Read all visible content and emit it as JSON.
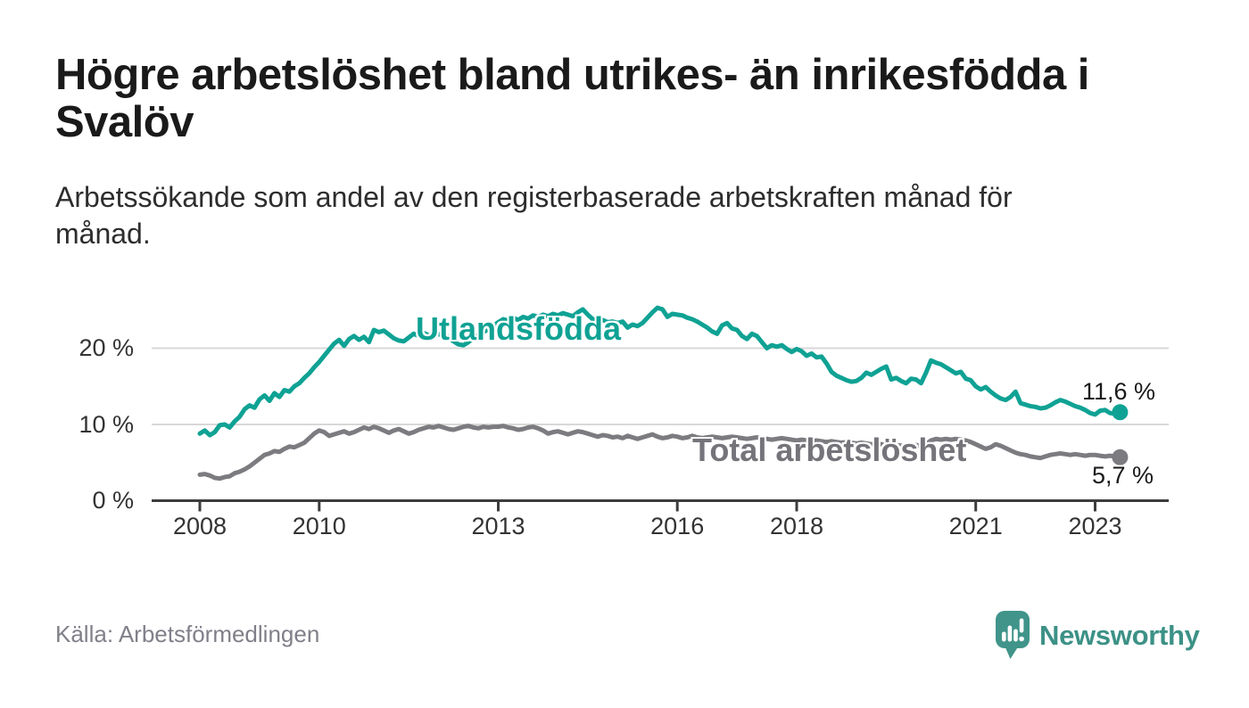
{
  "header": {
    "title_lines": [
      "Högre arbetslöshet bland utrikes- än inrikesfödda i",
      "Svalöv"
    ],
    "subtitle_lines": [
      "Arbetssökande som andel av den registerbaserade arbetskraften månad för",
      "månad."
    ]
  },
  "footer": {
    "source": "Källa: Arbetsförmedlingen",
    "logo_text": "Newsworthy"
  },
  "colors": {
    "accent_teal": "#0fa294",
    "series_gray": "#7b7b80",
    "grid": "#d8d8d8",
    "axis": "#3d3d3d",
    "logo_teal": "#40948a"
  },
  "chart_data": {
    "type": "line",
    "x_start": "2008-01",
    "x_end": "2023-06",
    "x_unit": "month",
    "ylim": [
      0,
      27
    ],
    "grid": "horizontal",
    "y_ticks": [
      {
        "value": 0,
        "label": "0 %"
      },
      {
        "value": 10,
        "label": "10 %"
      },
      {
        "value": 20,
        "label": "20 %"
      }
    ],
    "x_ticks": [
      {
        "year": 2008,
        "label": "2008"
      },
      {
        "year": 2010,
        "label": "2010"
      },
      {
        "year": 2013,
        "label": "2013"
      },
      {
        "year": 2016,
        "label": "2016"
      },
      {
        "year": 2018,
        "label": "2018"
      },
      {
        "year": 2021,
        "label": "2021"
      },
      {
        "year": 2023,
        "label": "2023"
      }
    ],
    "series": [
      {
        "name": "Utlandsfödda",
        "color": "#0fa294",
        "end_label": "11,6 %",
        "end_value": 11.6,
        "values": [
          8.8,
          9.2,
          8.6,
          9.0,
          9.9,
          10.0,
          9.6,
          10.4,
          11.0,
          12.0,
          12.5,
          12.2,
          13.3,
          13.8,
          13.1,
          14.1,
          13.6,
          14.5,
          14.3,
          15.0,
          15.4,
          16.1,
          16.7,
          17.5,
          18.2,
          19.0,
          19.8,
          20.6,
          21.1,
          20.3,
          21.2,
          21.6,
          21.1,
          21.5,
          20.8,
          22.4,
          22.1,
          22.3,
          21.8,
          21.3,
          21.0,
          20.9,
          21.4,
          21.9,
          21.6,
          22.0,
          21.7,
          21.9,
          21.8,
          22.0,
          21.4,
          20.9,
          20.5,
          20.4,
          20.8,
          21.3,
          21.7,
          22.1,
          22.5,
          22.9,
          23.4,
          23.8,
          23.6,
          24.0,
          23.7,
          24.1,
          23.9,
          24.3,
          24.1,
          24.4,
          24.2,
          24.5,
          24.3,
          24.6,
          24.4,
          24.2,
          24.7,
          25.1,
          24.4,
          23.8,
          23.5,
          23.7,
          23.4,
          23.5,
          23.3,
          23.5,
          22.7,
          23.1,
          22.9,
          23.3,
          24.0,
          24.7,
          25.3,
          25.1,
          24.1,
          24.5,
          24.4,
          24.3,
          24.0,
          23.8,
          23.5,
          23.1,
          22.7,
          22.2,
          21.9,
          23.0,
          23.3,
          22.6,
          22.4,
          21.6,
          21.2,
          21.9,
          21.6,
          20.8,
          20.0,
          20.4,
          20.2,
          20.4,
          19.9,
          19.5,
          19.9,
          19.6,
          19.0,
          19.3,
          18.8,
          18.9,
          18.0,
          16.9,
          16.4,
          16.1,
          15.8,
          15.6,
          15.7,
          16.1,
          16.8,
          16.5,
          16.9,
          17.3,
          17.6,
          15.9,
          16.1,
          15.7,
          15.4,
          16.0,
          15.9,
          15.4,
          16.8,
          18.4,
          18.1,
          17.9,
          17.5,
          17.1,
          16.7,
          16.9,
          16.0,
          15.8,
          15.0,
          14.6,
          14.9,
          14.3,
          13.8,
          13.4,
          13.2,
          13.6,
          14.3,
          12.8,
          12.6,
          12.4,
          12.3,
          12.1,
          12.2,
          12.5,
          12.9,
          13.2,
          13.0,
          12.7,
          12.4,
          12.2,
          11.9,
          11.5,
          11.3,
          11.8,
          11.9,
          11.5,
          11.4,
          11.6
        ]
      },
      {
        "name": "Total arbetslöshet",
        "color": "#7b7b80",
        "end_label": "5,7 %",
        "end_value": 5.7,
        "values": [
          3.4,
          3.5,
          3.3,
          3.0,
          2.9,
          3.1,
          3.2,
          3.6,
          3.8,
          4.1,
          4.5,
          5.0,
          5.5,
          6.0,
          6.2,
          6.5,
          6.4,
          6.8,
          7.1,
          7.0,
          7.3,
          7.6,
          8.2,
          8.8,
          9.2,
          9.0,
          8.5,
          8.7,
          8.9,
          9.1,
          8.8,
          9.0,
          9.3,
          9.6,
          9.4,
          9.7,
          9.5,
          9.2,
          8.9,
          9.2,
          9.4,
          9.1,
          8.8,
          9.0,
          9.3,
          9.5,
          9.7,
          9.6,
          9.8,
          9.6,
          9.4,
          9.3,
          9.5,
          9.7,
          9.8,
          9.6,
          9.5,
          9.7,
          9.6,
          9.7,
          9.7,
          9.8,
          9.6,
          9.5,
          9.3,
          9.4,
          9.6,
          9.7,
          9.5,
          9.2,
          8.8,
          9.0,
          9.1,
          8.9,
          8.7,
          8.9,
          9.1,
          9.0,
          8.8,
          8.6,
          8.4,
          8.6,
          8.5,
          8.3,
          8.4,
          8.2,
          8.5,
          8.3,
          8.1,
          8.3,
          8.5,
          8.7,
          8.4,
          8.2,
          8.3,
          8.5,
          8.4,
          8.2,
          8.3,
          8.5,
          8.3,
          8.2,
          8.3,
          8.4,
          8.3,
          8.2,
          8.3,
          8.4,
          8.3,
          8.2,
          8.1,
          8.2,
          8.3,
          8.2,
          8.1,
          8.0,
          8.1,
          8.2,
          8.1,
          8.0,
          7.9,
          8.0,
          7.9,
          7.8,
          7.9,
          7.8,
          7.7,
          7.8,
          7.7,
          7.6,
          7.7,
          7.6,
          7.5,
          7.6,
          7.5,
          7.4,
          7.5,
          7.4,
          7.3,
          7.4,
          7.3,
          7.2,
          7.3,
          7.3,
          7.3,
          7.2,
          7.4,
          7.9,
          8.1,
          8.0,
          8.1,
          8.0,
          8.1,
          8.0,
          7.9,
          7.7,
          7.4,
          7.1,
          6.8,
          7.0,
          7.4,
          7.2,
          6.9,
          6.6,
          6.3,
          6.1,
          6.0,
          5.8,
          5.7,
          5.6,
          5.8,
          6.0,
          6.1,
          6.2,
          6.1,
          6.0,
          6.1,
          6.0,
          5.9,
          6.0,
          6.0,
          5.9,
          5.8,
          5.9,
          5.8,
          5.7
        ]
      }
    ]
  }
}
